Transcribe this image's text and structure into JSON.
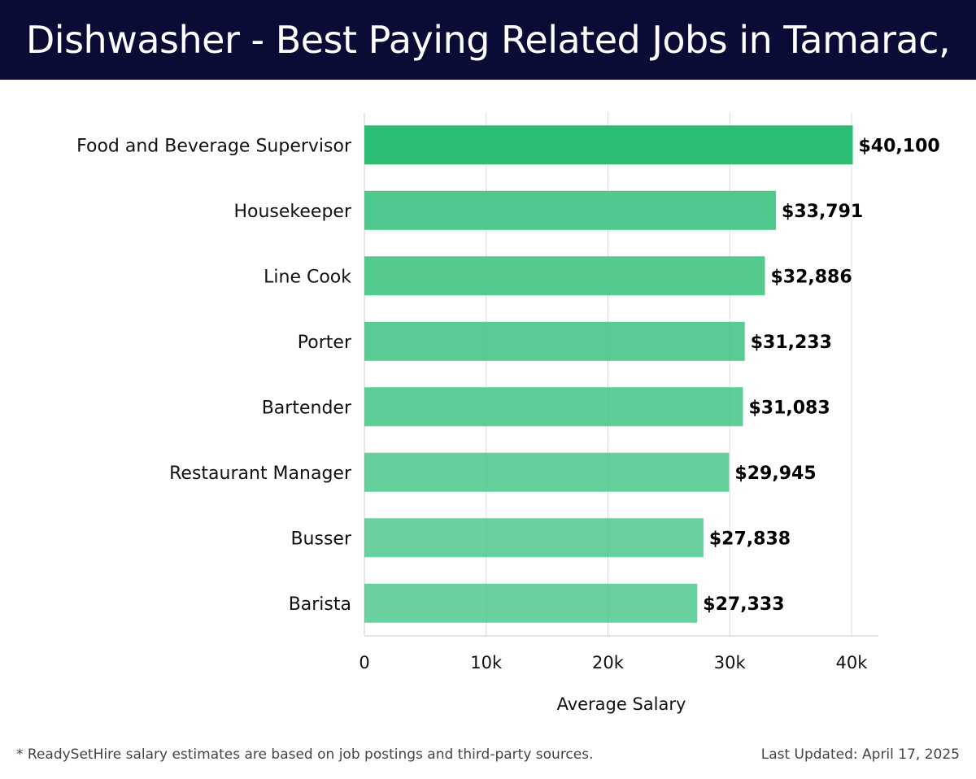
{
  "title": "Dishwasher - Best Paying Related Jobs in Tamarac, FL",
  "footer": {
    "note": "* ReadySetHire salary estimates are based on job postings and third-party sources.",
    "updated": "Last Updated: April 17, 2025"
  },
  "colors": {
    "top_bar": "#2bbd74",
    "bar": "#45c586",
    "header_bg": "#0b0c36"
  },
  "chart_data": {
    "type": "bar",
    "orientation": "horizontal",
    "categories": [
      "Food and Beverage Supervisor",
      "Housekeeper",
      "Line Cook",
      "Porter",
      "Bartender",
      "Restaurant Manager",
      "Busser",
      "Barista"
    ],
    "values": [
      40100,
      33791,
      32886,
      31233,
      31083,
      29945,
      27838,
      27333
    ],
    "labels": [
      "$40,100",
      "$33,791",
      "$32,886",
      "$31,233",
      "$31,083",
      "$29,945",
      "$27,838",
      "$27,333"
    ],
    "xlabel": "Average Salary",
    "xlim": [
      0,
      42000
    ],
    "xticks": [
      0,
      10000,
      20000,
      30000,
      40000
    ],
    "xtick_labels": [
      "0",
      "10k",
      "20k",
      "30k",
      "40k"
    ],
    "grid": true
  }
}
